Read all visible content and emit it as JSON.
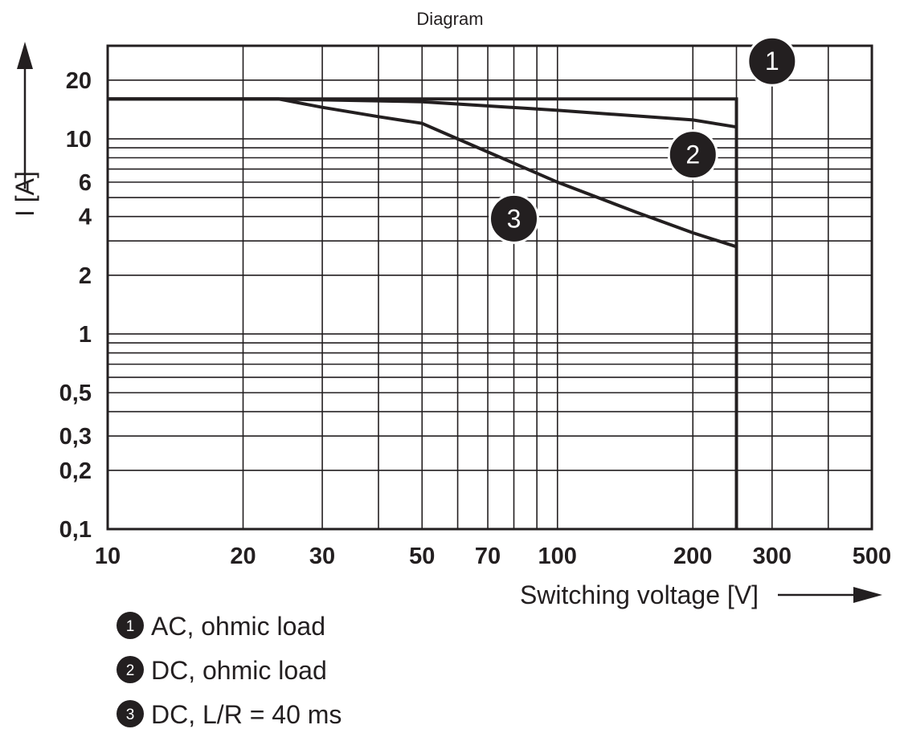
{
  "chart_data": {
    "type": "line",
    "title": "Diagram",
    "xlabel": "Switching voltage [V]",
    "ylabel": "I [A]",
    "x_scale": "log",
    "y_scale": "log",
    "xlim": [
      10,
      500
    ],
    "ylim": [
      0.1,
      30
    ],
    "x_tick_labels": [
      {
        "value": 10,
        "label": "10"
      },
      {
        "value": 20,
        "label": "20"
      },
      {
        "value": 30,
        "label": "30"
      },
      {
        "value": 50,
        "label": "50"
      },
      {
        "value": 70,
        "label": "70"
      },
      {
        "value": 100,
        "label": "100"
      },
      {
        "value": 200,
        "label": "200"
      },
      {
        "value": 300,
        "label": "300"
      },
      {
        "value": 500,
        "label": "500"
      }
    ],
    "y_tick_labels": [
      {
        "value": 0.1,
        "label": "0,1"
      },
      {
        "value": 0.2,
        "label": "0,2"
      },
      {
        "value": 0.3,
        "label": "0,3"
      },
      {
        "value": 0.5,
        "label": "0,5"
      },
      {
        "value": 1,
        "label": "1"
      },
      {
        "value": 2,
        "label": "2"
      },
      {
        "value": 4,
        "label": "4"
      },
      {
        "value": 6,
        "label": "6"
      },
      {
        "value": 10,
        "label": "10"
      },
      {
        "value": 20,
        "label": "20"
      }
    ],
    "x_gridlines": [
      10,
      20,
      30,
      40,
      50,
      60,
      70,
      80,
      90,
      100,
      200,
      250,
      300,
      400,
      500
    ],
    "y_gridlines": [
      0.1,
      0.2,
      0.3,
      0.4,
      0.5,
      0.6,
      0.7,
      0.8,
      0.9,
      1,
      2,
      3,
      4,
      5,
      6,
      7,
      8,
      9,
      10,
      20,
      30
    ],
    "grid": true,
    "series": [
      {
        "marker": "1",
        "points": [
          [
            10,
            16
          ],
          [
            250,
            16
          ],
          [
            250,
            0.1
          ]
        ]
      },
      {
        "marker": "2",
        "points": [
          [
            10,
            16
          ],
          [
            24,
            16
          ],
          [
            50,
            15.5
          ],
          [
            100,
            14
          ],
          [
            200,
            12.5
          ],
          [
            250,
            11.5
          ]
        ]
      },
      {
        "marker": "3",
        "points": [
          [
            10,
            16
          ],
          [
            24,
            16
          ],
          [
            30,
            14.5
          ],
          [
            40,
            13
          ],
          [
            50,
            12
          ],
          [
            60,
            10
          ],
          [
            80,
            7.5
          ],
          [
            100,
            6
          ],
          [
            150,
            4.2
          ],
          [
            200,
            3.3
          ],
          [
            250,
            2.8
          ]
        ]
      }
    ],
    "markers": [
      {
        "label": "1",
        "x": 300,
        "y": 25
      },
      {
        "label": "2",
        "x": 200,
        "y": 8.3
      },
      {
        "label": "3",
        "x": 80,
        "y": 3.9
      }
    ],
    "legend": [
      {
        "marker": "1",
        "text": "AC, ohmic load"
      },
      {
        "marker": "2",
        "text": "DC, ohmic load"
      },
      {
        "marker": "3",
        "text": "DC, L/R = 40 ms"
      }
    ],
    "legend_position": "bottom-left",
    "line_color": "#231f20",
    "grid_color": "#231f20"
  }
}
